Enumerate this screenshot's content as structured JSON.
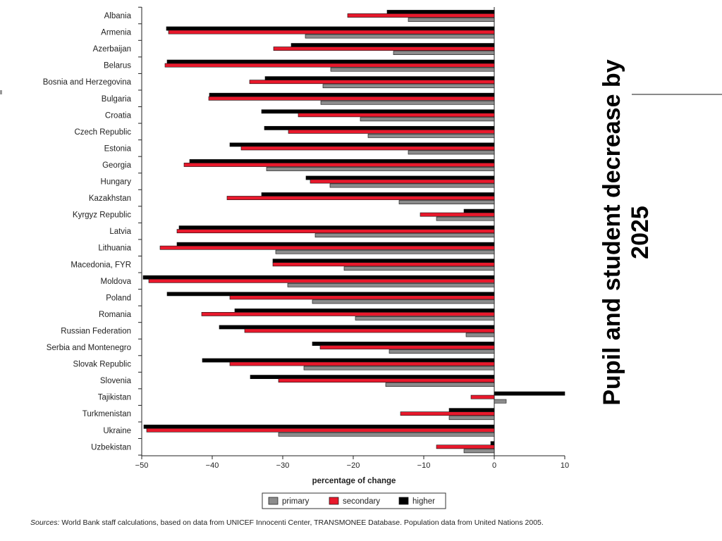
{
  "title": "Pupil and student decrease by 2025",
  "sources": {
    "label": "Sources:",
    "text": " World Bank staff calculations, based on data from UNICEF Innocenti Center, TRANSMONEE Database. Population data from United Nations 2005."
  },
  "chart_data": {
    "type": "bar",
    "orientation": "horizontal",
    "xlabel": "percentage of change",
    "xlim": [
      -50,
      10
    ],
    "xticks": [
      -50,
      -40,
      -30,
      -20,
      -10,
      0,
      10
    ],
    "xtick_labels": [
      "−50",
      "−40",
      "−30",
      "−20",
      "−10",
      "0",
      "10"
    ],
    "legend_position": "bottom-center",
    "categories": [
      "Albania",
      "Armenia",
      "Azerbaijan",
      "Belarus",
      "Bosnia and Herzegovina",
      "Bulgaria",
      "Croatia",
      "Czech Republic",
      "Estonia",
      "Georgia",
      "Hungary",
      "Kazakhstan",
      "Kyrgyz Republic",
      "Latvia",
      "Lithuania",
      "Macedonia, FYR",
      "Moldova",
      "Poland",
      "Romania",
      "Russian Federation",
      "Serbia and Montenegro",
      "Slovak Republic",
      "Slovenia",
      "Tajikistan",
      "Turkmenistan",
      "Ukraine",
      "Uzbekistan"
    ],
    "series": [
      {
        "name": "higher",
        "color": "#000000",
        "values": [
          -15.2,
          -46.5,
          -28.8,
          -46.4,
          -32.5,
          -40.4,
          -33.0,
          -32.6,
          -37.5,
          -43.2,
          -26.7,
          -33.0,
          -4.3,
          -44.7,
          -45.0,
          -31.4,
          -49.8,
          -46.4,
          -36.8,
          -39.0,
          -25.8,
          -41.4,
          -34.6,
          10.0,
          -6.4,
          -49.7,
          -0.5
        ]
      },
      {
        "name": "secondary",
        "color": "#e8192c",
        "values": [
          -20.8,
          -46.2,
          -31.3,
          -46.7,
          -34.7,
          -40.5,
          -27.8,
          -29.2,
          -35.9,
          -44.0,
          -26.1,
          -37.9,
          -10.5,
          -45.0,
          -47.4,
          -31.4,
          -49.0,
          -37.5,
          -41.5,
          -35.4,
          -24.7,
          -37.5,
          -30.6,
          -3.3,
          -13.3,
          -49.3,
          -8.2
        ]
      },
      {
        "name": "primary",
        "color": "#8c8c8c",
        "values": [
          -12.2,
          -26.8,
          -14.3,
          -23.2,
          -24.3,
          -24.6,
          -19.0,
          -17.9,
          -12.2,
          -32.3,
          -23.3,
          -13.5,
          -8.2,
          -25.4,
          -31.0,
          -21.3,
          -29.3,
          -25.8,
          -19.7,
          -4.0,
          -14.9,
          -27.0,
          -15.4,
          1.7,
          -6.4,
          -30.6,
          -4.3
        ]
      }
    ]
  }
}
